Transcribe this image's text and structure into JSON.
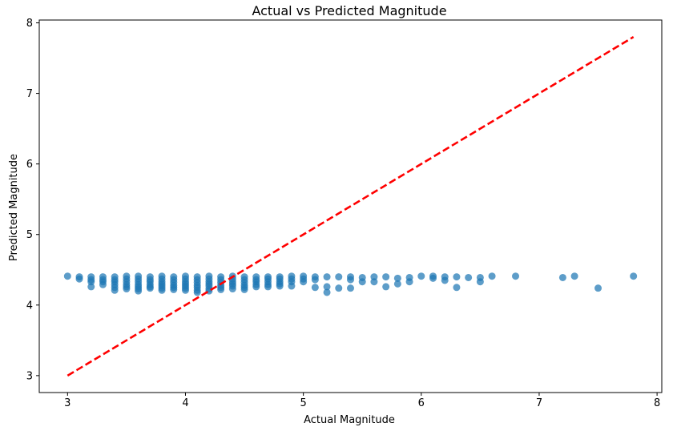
{
  "chart_data": {
    "type": "scatter",
    "title": "Actual vs Predicted Magnitude",
    "xlabel": "Actual Magnitude",
    "ylabel": "Predicted Magnitude",
    "xlim": [
      2.76,
      8.04
    ],
    "ylim": [
      2.76,
      8.04
    ],
    "xticks": [
      "3",
      "4",
      "5",
      "6",
      "7",
      "8"
    ],
    "yticks": [
      "3",
      "4",
      "5",
      "6",
      "7",
      "8"
    ],
    "grid": false,
    "colors": {
      "points": "#1f77b4",
      "reference_line": "#ff0000"
    },
    "reference_line": {
      "x": [
        3.0,
        7.8
      ],
      "y": [
        3.0,
        7.8
      ],
      "style": "dashed"
    },
    "points": {
      "x": [
        3.0,
        3.1,
        3.1,
        3.2,
        3.2,
        3.2,
        3.2,
        3.3,
        3.3,
        3.3,
        3.3,
        3.4,
        3.4,
        3.4,
        3.4,
        3.4,
        3.4,
        3.5,
        3.5,
        3.5,
        3.5,
        3.5,
        3.5,
        3.6,
        3.6,
        3.6,
        3.6,
        3.6,
        3.6,
        3.6,
        3.7,
        3.7,
        3.7,
        3.7,
        3.7,
        3.7,
        3.8,
        3.8,
        3.8,
        3.8,
        3.8,
        3.8,
        3.8,
        3.9,
        3.9,
        3.9,
        3.9,
        3.9,
        3.9,
        4.0,
        4.0,
        4.0,
        4.0,
        4.0,
        4.0,
        4.0,
        4.1,
        4.1,
        4.1,
        4.1,
        4.1,
        4.1,
        4.1,
        4.2,
        4.2,
        4.2,
        4.2,
        4.2,
        4.2,
        4.2,
        4.3,
        4.3,
        4.3,
        4.3,
        4.3,
        4.3,
        4.4,
        4.4,
        4.4,
        4.4,
        4.4,
        4.4,
        4.5,
        4.5,
        4.5,
        4.5,
        4.5,
        4.5,
        4.6,
        4.6,
        4.6,
        4.6,
        4.6,
        4.7,
        4.7,
        4.7,
        4.7,
        4.7,
        4.8,
        4.8,
        4.8,
        4.8,
        4.8,
        4.9,
        4.9,
        4.9,
        4.9,
        5.0,
        5.0,
        5.0,
        5.1,
        5.1,
        5.1,
        5.2,
        5.2,
        5.2,
        5.3,
        5.3,
        5.4,
        5.4,
        5.4,
        5.5,
        5.5,
        5.6,
        5.6,
        5.7,
        5.7,
        5.8,
        5.8,
        5.9,
        5.9,
        6.0,
        6.1,
        6.1,
        6.2,
        6.2,
        6.3,
        6.3,
        6.4,
        6.5,
        6.5,
        6.6,
        6.8,
        7.2,
        7.3,
        7.5,
        7.8
      ],
      "y": [
        4.41,
        4.4,
        4.37,
        4.4,
        4.36,
        4.33,
        4.26,
        4.4,
        4.36,
        4.33,
        4.29,
        4.4,
        4.36,
        4.33,
        4.29,
        4.25,
        4.21,
        4.41,
        4.37,
        4.33,
        4.29,
        4.26,
        4.23,
        4.41,
        4.37,
        4.33,
        4.29,
        4.26,
        4.23,
        4.2,
        4.4,
        4.36,
        4.33,
        4.29,
        4.26,
        4.24,
        4.41,
        4.37,
        4.33,
        4.3,
        4.27,
        4.24,
        4.21,
        4.4,
        4.36,
        4.32,
        4.28,
        4.25,
        4.22,
        4.41,
        4.37,
        4.33,
        4.3,
        4.27,
        4.24,
        4.21,
        4.4,
        4.36,
        4.32,
        4.28,
        4.25,
        4.21,
        4.18,
        4.41,
        4.37,
        4.33,
        4.3,
        4.27,
        4.23,
        4.2,
        4.4,
        4.36,
        4.32,
        4.28,
        4.25,
        4.22,
        4.41,
        4.37,
        4.33,
        4.3,
        4.27,
        4.23,
        4.4,
        4.36,
        4.32,
        4.28,
        4.25,
        4.22,
        4.4,
        4.36,
        4.33,
        4.29,
        4.26,
        4.4,
        4.37,
        4.33,
        4.29,
        4.26,
        4.4,
        4.37,
        4.33,
        4.3,
        4.27,
        4.41,
        4.37,
        4.33,
        4.27,
        4.41,
        4.37,
        4.33,
        4.4,
        4.36,
        4.25,
        4.4,
        4.26,
        4.18,
        4.4,
        4.24,
        4.4,
        4.36,
        4.24,
        4.39,
        4.33,
        4.4,
        4.33,
        4.4,
        4.26,
        4.38,
        4.3,
        4.39,
        4.33,
        4.41,
        4.41,
        4.38,
        4.4,
        4.35,
        4.4,
        4.25,
        4.39,
        4.39,
        4.33,
        4.41,
        4.41,
        4.39,
        4.41,
        4.24,
        4.41
      ]
    }
  }
}
